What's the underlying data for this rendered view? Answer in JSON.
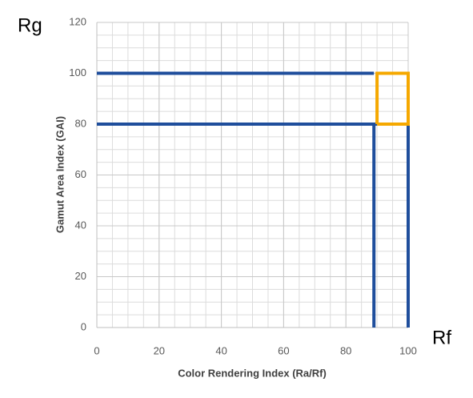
{
  "chart_data": {
    "type": "line",
    "corner_labels": {
      "y": "Rg",
      "x": "Rf"
    },
    "x_label": "Color Rendering Index (Ra/Rf)",
    "y_label": "Gamut Area Index (GAI)",
    "xlim": [
      0,
      100
    ],
    "xticks": [
      0,
      20,
      40,
      60,
      80,
      100
    ],
    "ylim": [
      0,
      120
    ],
    "yticks": [
      0,
      20,
      40,
      60,
      80,
      100,
      120
    ],
    "grid": true,
    "minor_grid_step": 5,
    "series": [
      {
        "color": "#1f4e9c",
        "x": [
          0,
          89
        ],
        "values": [
          100,
          100
        ]
      },
      {
        "color": "#1f4e9c",
        "x": [
          0,
          90
        ],
        "values": [
          80,
          80
        ]
      },
      {
        "color": "#1f4e9c",
        "x": [
          89,
          89
        ],
        "values": [
          0,
          80
        ]
      },
      {
        "color": "#1f4e9c",
        "x": [
          100,
          100
        ],
        "values": [
          0,
          80
        ]
      },
      {
        "color": "#f5a800",
        "x": [
          90,
          100,
          100,
          90,
          90
        ],
        "values": [
          80,
          80,
          100,
          100,
          80
        ]
      }
    ]
  }
}
